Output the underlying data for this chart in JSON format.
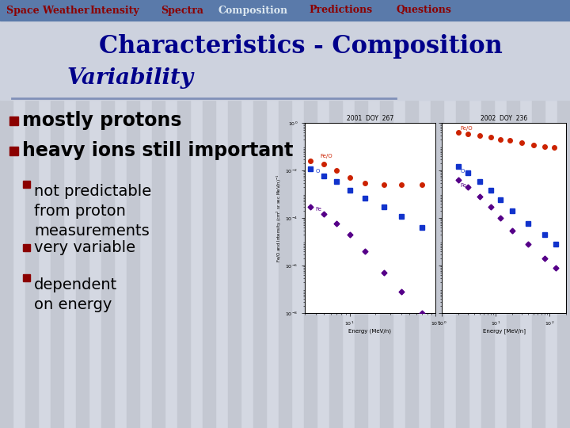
{
  "nav_items": [
    "Space Weather",
    "Intensity",
    "Spectra",
    "Composition",
    "Predictions",
    "Questions"
  ],
  "nav_active": "Composition",
  "nav_bg_color": "#5a7aaa",
  "nav_text_color": "#8b0000",
  "nav_active_color": "#dde8f0",
  "title_line1": "Characteristics - Composition",
  "title_line2": "Variability",
  "title_color": "#00008b",
  "bg_color": "#d4d8e2",
  "bg_stripe_color": "#c4c8d2",
  "bullet_color": "#8b0000",
  "bullet1": "mostly protons",
  "bullet2": "heavy ions still important",
  "sub_bullets": [
    "not predictable\nfrom proton\nmeasurements",
    "very variable",
    "dependent\non energy"
  ],
  "divider_color": "#8090b8",
  "text_color": "#000000",
  "nav_fontsize": 9,
  "title1_fontsize": 22,
  "title2_fontsize": 20,
  "bullet_fontsize": 17,
  "sub_fontsize": 14
}
